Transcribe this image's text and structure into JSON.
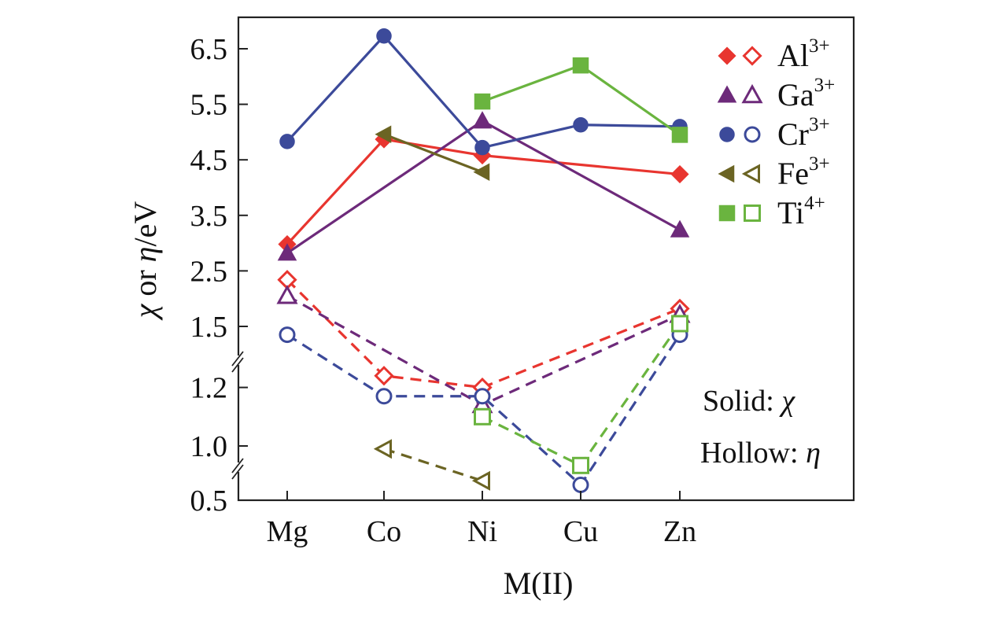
{
  "chart_data": {
    "type": "line",
    "x_categories": [
      "Mg",
      "Co",
      "Ni",
      "Cu",
      "Zn"
    ],
    "xlabel": "M(II)",
    "ylabel": {
      "pre": "χ",
      "mid": " or ",
      "eta": "η",
      "post": "/eV"
    },
    "y_axis": {
      "type": "broken",
      "segments": [
        {
          "range": [
            0.5,
            0.7
          ],
          "ticks": [
            "0.5"
          ]
        },
        {
          "range": [
            0.85,
            1.3
          ],
          "ticks": [
            "1.0",
            "1.2"
          ]
        },
        {
          "range": [
            1.3,
            7.0
          ],
          "ticks": [
            "1.5",
            "2.5",
            "3.5",
            "4.5",
            "5.5",
            "6.5"
          ]
        }
      ]
    },
    "series": [
      {
        "name": "Al",
        "charge": "3+",
        "color": "#e8352f",
        "marker": "diamond",
        "chi": [
          2.98,
          4.87,
          4.58,
          null,
          4.24
        ],
        "eta": [
          2.34,
          1.24,
          1.2,
          null,
          1.82
        ]
      },
      {
        "name": "Ga",
        "charge": "3+",
        "color": "#6d2a7a",
        "marker": "triangle",
        "chi": [
          2.82,
          null,
          5.2,
          null,
          3.24
        ],
        "eta": [
          2.05,
          null,
          1.14,
          null,
          1.71
        ]
      },
      {
        "name": "Cr",
        "charge": "3+",
        "color": "#3c4a9a",
        "marker": "circle",
        "chi": [
          4.83,
          6.73,
          4.72,
          5.13,
          5.1
        ],
        "eta": [
          1.35,
          1.17,
          1.17,
          0.65,
          1.35
        ]
      },
      {
        "name": "Fe",
        "charge": "3+",
        "color": "#6b6423",
        "marker": "triangle-left",
        "chi": [
          null,
          4.96,
          4.28,
          null,
          null
        ],
        "eta": [
          null,
          0.99,
          0.69,
          null,
          null
        ]
      },
      {
        "name": "Ti",
        "charge": "4+",
        "color": "#6ab43f",
        "marker": "square",
        "chi": [
          null,
          null,
          5.55,
          6.2,
          4.95
        ],
        "eta": [
          null,
          null,
          1.1,
          0.84,
          1.55
        ]
      }
    ],
    "annotations": {
      "solid": {
        "text": "Solid: ",
        "symbol": "χ"
      },
      "hollow": {
        "text": "Hollow: ",
        "symbol": "η"
      }
    },
    "legend_position": "top-right"
  }
}
